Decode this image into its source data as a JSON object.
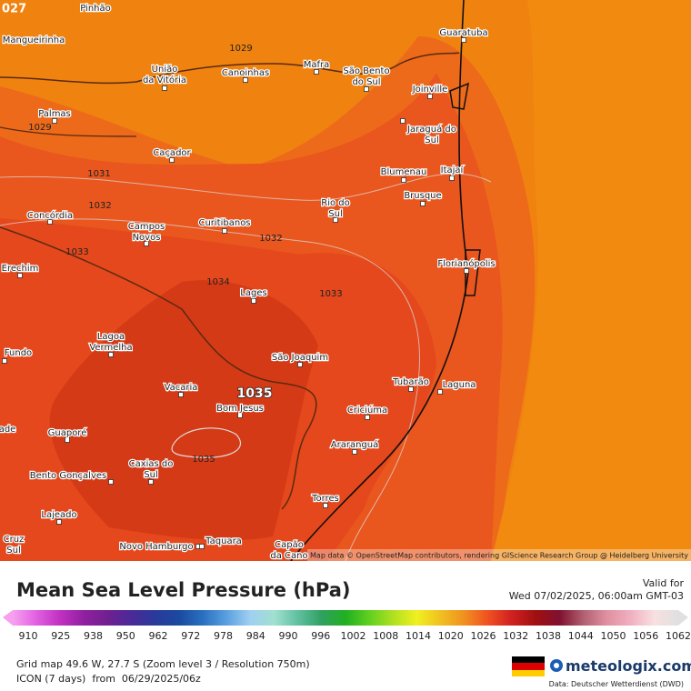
{
  "map": {
    "corner_label": "027",
    "cities": [
      [
        "Pinhão"
      ],
      [
        "Mangueirinha"
      ],
      [
        "União",
        "da Vitória"
      ],
      [
        "Canoinhas"
      ],
      [
        "Mafra"
      ],
      [
        "São Bento",
        "do Sul"
      ],
      [
        "Guaratuba"
      ],
      [
        "Joinville"
      ],
      [
        "Palmas"
      ],
      [
        "Jaraguá do",
        "Sul"
      ],
      [
        "Caçador"
      ],
      [
        "Blumenau"
      ],
      [
        "Itajaí"
      ],
      [
        "Brusque"
      ],
      [
        "Rio do",
        "Sul"
      ],
      [
        "Concórdia"
      ],
      [
        "Campos",
        "Novos"
      ],
      [
        "Curitibanos"
      ],
      [
        "Erechim"
      ],
      [
        "Florianópolis"
      ],
      [
        "Lages"
      ],
      [
        "Lagoa",
        "Vermelha"
      ],
      [
        "Fundo"
      ],
      [
        "São Joaquim"
      ],
      [
        "Tubarão"
      ],
      [
        "Laguna"
      ],
      [
        "Vacaria"
      ],
      [
        "Bom Jesus"
      ],
      [
        "Criciúma"
      ],
      [
        "ade"
      ],
      [
        "Guaporé"
      ],
      [
        "Araranguá"
      ],
      [
        "Caxias do",
        "Sul"
      ],
      [
        "Bento Gonçalves"
      ],
      [
        "Torres"
      ],
      [
        "Lajeado"
      ],
      [
        "Cruz",
        "Sul"
      ],
      [
        "Novo Hamburgo"
      ],
      [
        "Taquara"
      ],
      [
        "Capão",
        "da Cano"
      ]
    ],
    "isobar_labels": [
      "1029",
      "1029",
      "1031",
      "1032",
      "1032",
      "1033",
      "1033",
      "1034",
      "1035",
      "1035"
    ],
    "attribution": "Map data © OpenStreetMap contributors, rendering GIScience Research Group @ Heidelberg University"
  },
  "footer": {
    "title": "Mean Sea Level Pressure (hPa)",
    "valid_label": "Valid for",
    "valid_time": "Wed 07/02/2025, 06:00am GMT-03",
    "scale_labels": [
      "910",
      "925",
      "938",
      "950",
      "962",
      "972",
      "978",
      "984",
      "990",
      "996",
      "1002",
      "1008",
      "1014",
      "1020",
      "1026",
      "1032",
      "1038",
      "1044",
      "1050",
      "1056",
      "1062"
    ],
    "grid_info": "Grid map 49.6 W, 27.7 S (Zoom level 3 / Resolution 750m)",
    "model_info": "ICON (7 days)  from  06/29/2025/06z",
    "brand": "meteologix.com",
    "credit": "Data: Deutscher Wetterdienst (DWD)"
  }
}
